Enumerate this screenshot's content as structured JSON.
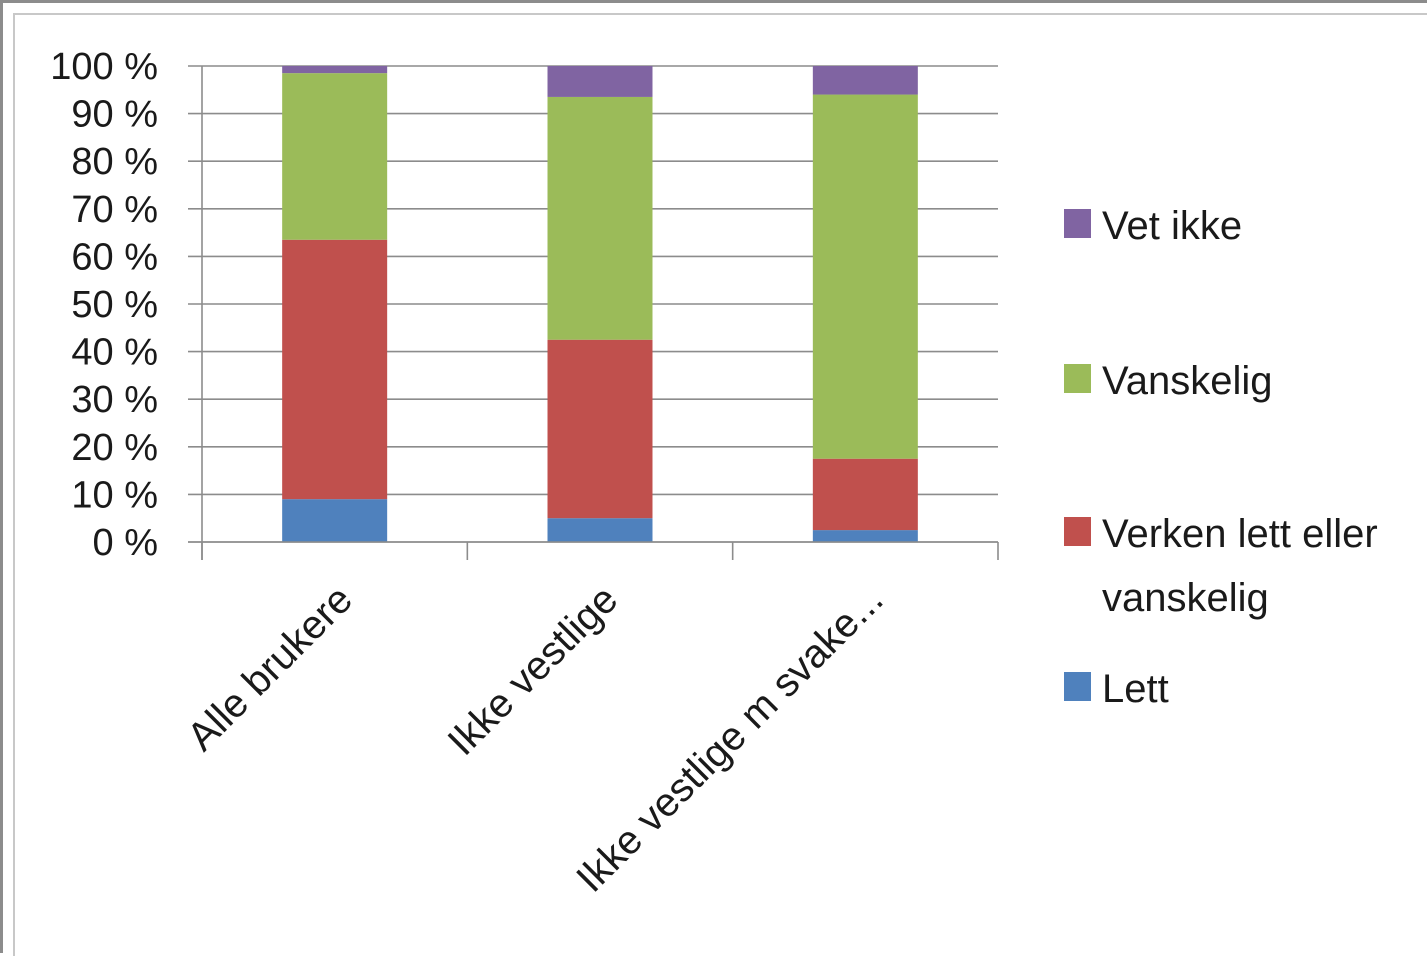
{
  "chart_data": {
    "type": "bar",
    "stacked": true,
    "categories": [
      "Alle brukere",
      "Ikke vestlige",
      "Ikke vestlige m svake..."
    ],
    "series": [
      {
        "name": "Lett",
        "color": "#4f81bd",
        "values": [
          9,
          5,
          2.5
        ]
      },
      {
        "name": "Verken lett eller vanskelig",
        "color": "#c0504d",
        "values": [
          54.5,
          37.5,
          15
        ]
      },
      {
        "name": "Vanskelig",
        "color": "#9bbb59",
        "values": [
          35,
          51,
          76.5
        ]
      },
      {
        "name": "Vet ikke",
        "color": "#8064a2",
        "values": [
          1.5,
          6.5,
          6
        ]
      }
    ],
    "y_ticks": [
      "0 %",
      "10 %",
      "20 %",
      "30 %",
      "40 %",
      "50 %",
      "60 %",
      "70 %",
      "80 %",
      "90 %",
      "100 %"
    ],
    "ylim": [
      0,
      100
    ],
    "grid": true,
    "legend_position": "right",
    "legend": [
      {
        "label_lines": [
          "Vet ikke"
        ],
        "color": "#8064a2"
      },
      {
        "label_lines": [
          "Vanskelig"
        ],
        "color": "#9bbb59"
      },
      {
        "label_lines": [
          "Verken lett eller",
          "vanskelig"
        ],
        "color": "#c0504d"
      },
      {
        "label_lines": [
          "Lett"
        ],
        "color": "#4f81bd"
      }
    ]
  }
}
